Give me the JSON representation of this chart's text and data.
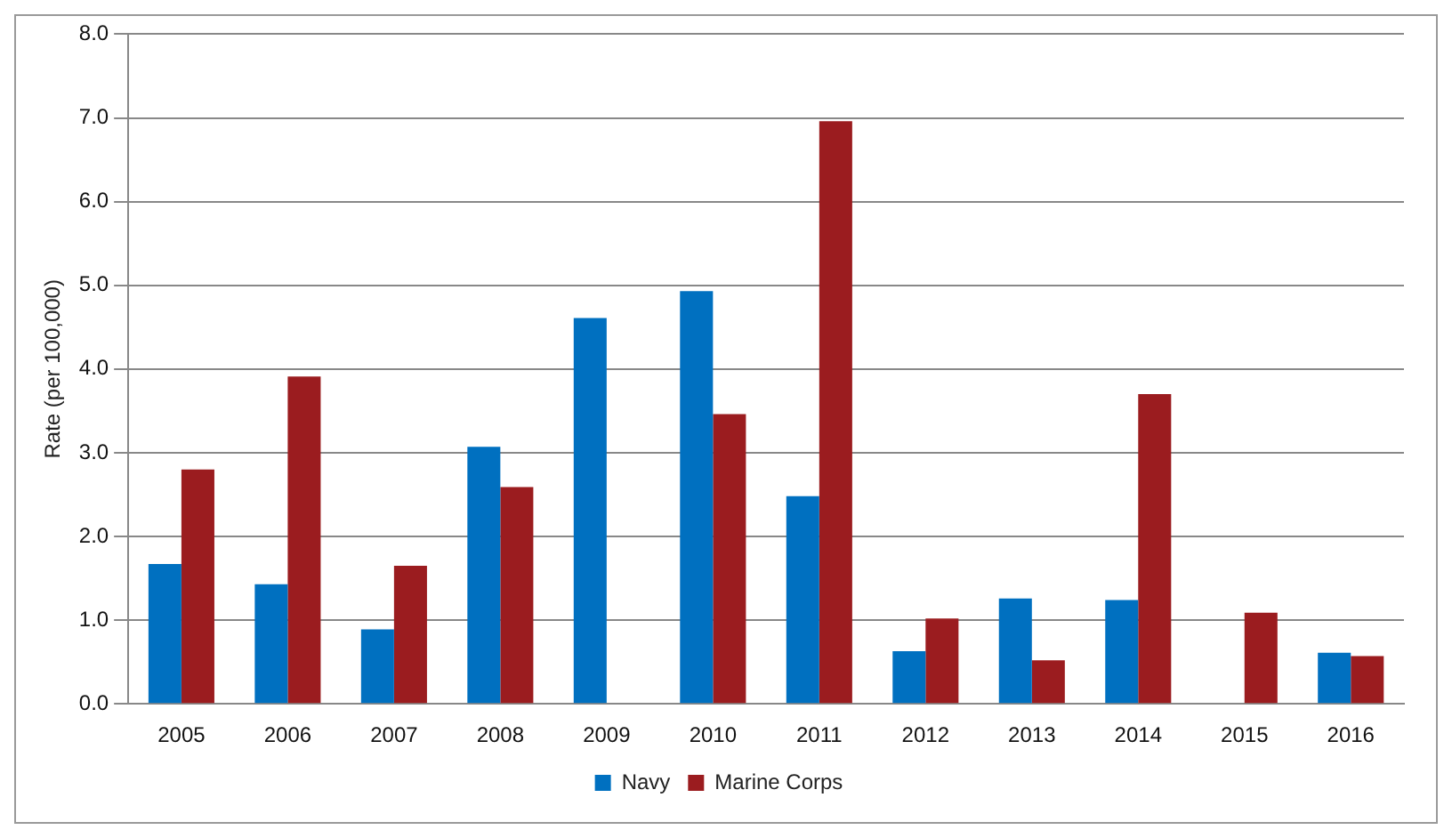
{
  "chart_data": {
    "type": "bar",
    "ylabel": "Rate (per 100,000)",
    "categories": [
      "2005",
      "2006",
      "2007",
      "2008",
      "2009",
      "2010",
      "2011",
      "2012",
      "2013",
      "2014",
      "2015",
      "2016"
    ],
    "series": [
      {
        "name": "Navy",
        "color": "#0070c0",
        "values": [
          1.67,
          1.43,
          0.89,
          3.07,
          4.61,
          4.93,
          2.48,
          0.63,
          1.26,
          1.24,
          0,
          0.61
        ]
      },
      {
        "name": "Marine Corps",
        "color": "#9b1c1f",
        "values": [
          2.8,
          3.91,
          1.65,
          2.59,
          0,
          3.46,
          6.96,
          1.02,
          0.52,
          3.7,
          1.09,
          0.57
        ]
      }
    ],
    "ylim": [
      0,
      8
    ],
    "yticks": [
      {
        "value": 0,
        "label": "0.0"
      },
      {
        "value": 1,
        "label": "1.0"
      },
      {
        "value": 2,
        "label": "2.0"
      },
      {
        "value": 3,
        "label": "3.0"
      },
      {
        "value": 4,
        "label": "4.0"
      },
      {
        "value": 5,
        "label": "5.0"
      },
      {
        "value": 6,
        "label": "6.0"
      },
      {
        "value": 7,
        "label": "7.0"
      },
      {
        "value": 8,
        "label": "8.0"
      }
    ],
    "grid": "y",
    "legend": "bottom"
  }
}
